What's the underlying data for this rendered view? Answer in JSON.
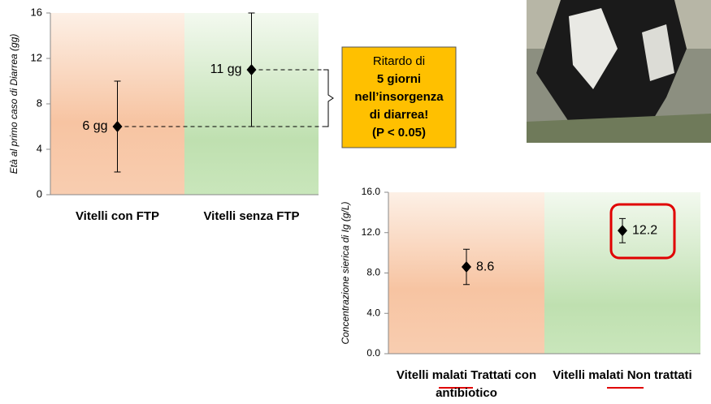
{
  "chart_data": [
    {
      "type": "errorpoint",
      "y_label": "Età al primo caso di Diarrea (gg)",
      "categories": [
        "Vitelli con FTP",
        "Vitelli senza FTP"
      ],
      "values": [
        6,
        11
      ],
      "errors": [
        4,
        5
      ],
      "value_labels": [
        "6 gg",
        "11 gg"
      ],
      "ylim": [
        0,
        16
      ],
      "yticks": [
        0,
        4,
        8,
        12,
        16
      ],
      "annotation": [
        "Ritardo di",
        "5 giorni",
        "nell’insorgenza",
        "di diarrea!",
        "(P < 0.05)"
      ]
    },
    {
      "type": "errorpoint",
      "y_label": "Concentrazione sierica di Ig (g/L)",
      "categories": [
        "Vitelli malati Trattati con antibiotico",
        "Vitelli malati Non trattati"
      ],
      "values": [
        8.6,
        12.2
      ],
      "errors": [
        1.75,
        1.2
      ],
      "ylim": [
        0,
        16
      ],
      "yticks": [
        {
          "value": 0,
          "label": "0.0"
        },
        {
          "value": 4,
          "label": "4.0"
        },
        {
          "value": 8,
          "label": "8.0"
        },
        {
          "value": 12,
          "label": "12.0"
        },
        {
          "value": 16,
          "label": "16.0"
        }
      ]
    }
  ]
}
